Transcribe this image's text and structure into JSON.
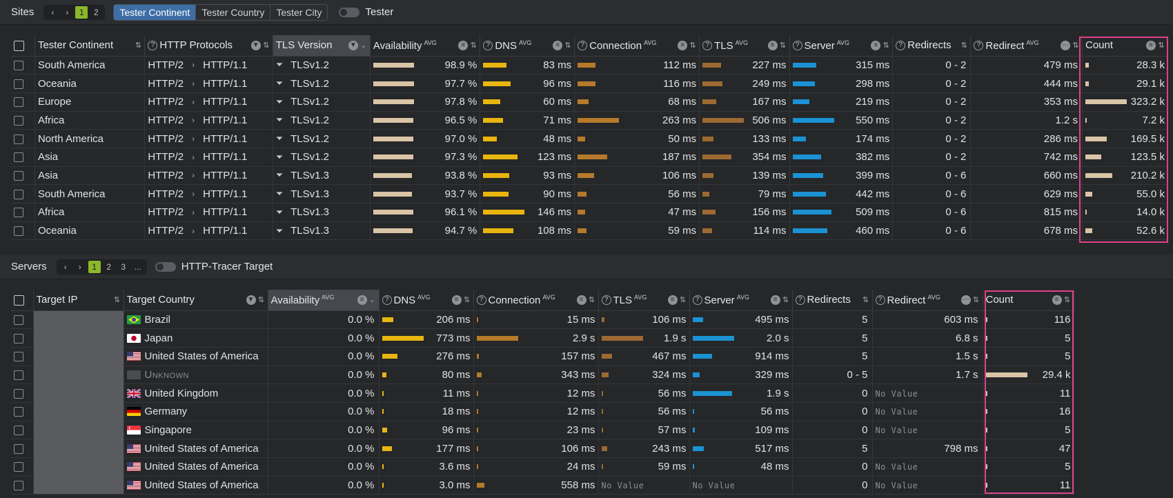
{
  "sites_panel": {
    "title": "Sites",
    "pages": [
      "1",
      "2"
    ],
    "active_page": "1",
    "segments": [
      "Tester Continent",
      "Tester Country",
      "Tester City"
    ],
    "toggle_label": "Tester",
    "columns": {
      "continent": "Tester Continent",
      "protocols": "HTTP Protocols",
      "tls_version": "TLS Version",
      "availability": "Availability",
      "dns": "DNS",
      "connection": "Connection",
      "tls": "TLS",
      "server": "Server",
      "redirects": "Redirects",
      "redirect": "Redirect",
      "count": "Count",
      "avg": "AVG"
    },
    "rows": [
      {
        "continent": "South America",
        "proto_a": "HTTP/2",
        "proto_b": "HTTP/1.1",
        "tls_version": "TLSv1.2",
        "availability": "98.9 %",
        "avail_pct": 0.989,
        "dns": "83 ms",
        "dns_frac": 0.57,
        "connection": "112 ms",
        "conn_frac": 0.43,
        "tls": "227 ms",
        "tls_frac": 0.45,
        "server": "315 ms",
        "server_frac": 0.57,
        "redirects": "0 - 2",
        "redirect": "479 ms",
        "count": "28.3 k",
        "count_frac": 0.09
      },
      {
        "continent": "Oceania",
        "proto_a": "HTTP/2",
        "proto_b": "HTTP/1.1",
        "tls_version": "TLSv1.2",
        "availability": "97.7 %",
        "avail_pct": 0.977,
        "dns": "96 ms",
        "dns_frac": 0.66,
        "connection": "116 ms",
        "conn_frac": 0.44,
        "tls": "249 ms",
        "tls_frac": 0.49,
        "server": "298 ms",
        "server_frac": 0.54,
        "redirects": "0 - 2",
        "redirect": "444 ms",
        "count": "29.1 k",
        "count_frac": 0.09
      },
      {
        "continent": "Europe",
        "proto_a": "HTTP/2",
        "proto_b": "HTTP/1.1",
        "tls_version": "TLSv1.2",
        "availability": "97.8 %",
        "avail_pct": 0.978,
        "dns": "60 ms",
        "dns_frac": 0.41,
        "connection": "68 ms",
        "conn_frac": 0.26,
        "tls": "167 ms",
        "tls_frac": 0.33,
        "server": "219 ms",
        "server_frac": 0.4,
        "redirects": "0 - 2",
        "redirect": "353 ms",
        "count": "323.2 k",
        "count_frac": 1.0
      },
      {
        "continent": "Africa",
        "proto_a": "HTTP/2",
        "proto_b": "HTTP/1.1",
        "tls_version": "TLSv1.2",
        "availability": "96.5 %",
        "avail_pct": 0.965,
        "dns": "71 ms",
        "dns_frac": 0.49,
        "connection": "263 ms",
        "conn_frac": 1.0,
        "tls": "506 ms",
        "tls_frac": 1.0,
        "server": "550 ms",
        "server_frac": 1.0,
        "redirects": "0 - 2",
        "redirect": "1.2 s",
        "count": "7.2 k",
        "count_frac": 0.02
      },
      {
        "continent": "North America",
        "proto_a": "HTTP/2",
        "proto_b": "HTTP/1.1",
        "tls_version": "TLSv1.2",
        "availability": "97.0 %",
        "avail_pct": 0.97,
        "dns": "48 ms",
        "dns_frac": 0.33,
        "connection": "50 ms",
        "conn_frac": 0.19,
        "tls": "133 ms",
        "tls_frac": 0.26,
        "server": "174 ms",
        "server_frac": 0.32,
        "redirects": "0 - 2",
        "redirect": "286 ms",
        "count": "169.5 k",
        "count_frac": 0.52
      },
      {
        "continent": "Asia",
        "proto_a": "HTTP/2",
        "proto_b": "HTTP/1.1",
        "tls_version": "TLSv1.2",
        "availability": "97.3 %",
        "avail_pct": 0.973,
        "dns": "123 ms",
        "dns_frac": 0.84,
        "connection": "187 ms",
        "conn_frac": 0.71,
        "tls": "354 ms",
        "tls_frac": 0.7,
        "server": "382 ms",
        "server_frac": 0.69,
        "redirects": "0 - 2",
        "redirect": "742 ms",
        "count": "123.5 k",
        "count_frac": 0.38
      },
      {
        "continent": "Asia",
        "proto_a": "HTTP/2",
        "proto_b": "HTTP/1.1",
        "tls_version": "TLSv1.3",
        "availability": "93.8 %",
        "avail_pct": 0.938,
        "dns": "93 ms",
        "dns_frac": 0.64,
        "connection": "106 ms",
        "conn_frac": 0.4,
        "tls": "139 ms",
        "tls_frac": 0.27,
        "server": "399 ms",
        "server_frac": 0.73,
        "redirects": "0 - 6",
        "redirect": "660 ms",
        "count": "210.2 k",
        "count_frac": 0.65
      },
      {
        "continent": "South America",
        "proto_a": "HTTP/2",
        "proto_b": "HTTP/1.1",
        "tls_version": "TLSv1.3",
        "availability": "93.7 %",
        "avail_pct": 0.937,
        "dns": "90 ms",
        "dns_frac": 0.62,
        "connection": "56 ms",
        "conn_frac": 0.21,
        "tls": "79 ms",
        "tls_frac": 0.16,
        "server": "442 ms",
        "server_frac": 0.8,
        "redirects": "0 - 6",
        "redirect": "629 ms",
        "count": "55.0 k",
        "count_frac": 0.17
      },
      {
        "continent": "Africa",
        "proto_a": "HTTP/2",
        "proto_b": "HTTP/1.1",
        "tls_version": "TLSv1.3",
        "availability": "96.1 %",
        "avail_pct": 0.961,
        "dns": "146 ms",
        "dns_frac": 1.0,
        "connection": "47 ms",
        "conn_frac": 0.18,
        "tls": "156 ms",
        "tls_frac": 0.31,
        "server": "509 ms",
        "server_frac": 0.93,
        "redirects": "0 - 6",
        "redirect": "815 ms",
        "count": "14.0 k",
        "count_frac": 0.04
      },
      {
        "continent": "Oceania",
        "proto_a": "HTTP/2",
        "proto_b": "HTTP/1.1",
        "tls_version": "TLSv1.3",
        "availability": "94.7 %",
        "avail_pct": 0.947,
        "dns": "108 ms",
        "dns_frac": 0.74,
        "connection": "59 ms",
        "conn_frac": 0.22,
        "tls": "114 ms",
        "tls_frac": 0.23,
        "server": "460 ms",
        "server_frac": 0.84,
        "redirects": "0 - 6",
        "redirect": "678 ms",
        "count": "52.6 k",
        "count_frac": 0.16
      }
    ]
  },
  "servers_panel": {
    "title": "Servers",
    "pages": [
      "1",
      "2",
      "3",
      "..."
    ],
    "active_page": "1",
    "toggle_label": "HTTP-Tracer Target",
    "columns": {
      "target_ip": "Target IP",
      "target_country": "Target Country",
      "availability": "Availability",
      "dns": "DNS",
      "connection": "Connection",
      "tls": "TLS",
      "server": "Server",
      "redirects": "Redirects",
      "redirect": "Redirect",
      "count": "Count",
      "avg": "AVG"
    },
    "no_value": "No Value",
    "rows": [
      {
        "flag": "br",
        "country": "Brazil",
        "availability": "0.0 %",
        "dns": "206 ms",
        "dns_frac": 0.27,
        "connection": "15 ms",
        "conn_frac": 0.01,
        "tls": "106 ms",
        "tls_frac": 0.06,
        "server": "495 ms",
        "server_frac": 0.25,
        "redirects": "5",
        "redirect": "603 ms",
        "count": "116",
        "count_frac": 0.005
      },
      {
        "flag": "jp",
        "country": "Japan",
        "availability": "0.0 %",
        "dns": "773 ms",
        "dns_frac": 1.0,
        "connection": "2.9 s",
        "conn_frac": 1.0,
        "tls": "1.9 s",
        "tls_frac": 1.0,
        "server": "2.0 s",
        "server_frac": 1.0,
        "redirects": "5",
        "redirect": "6.8 s",
        "count": "5",
        "count_frac": 0.005
      },
      {
        "flag": "us",
        "country": "United States of America",
        "availability": "0.0 %",
        "dns": "276 ms",
        "dns_frac": 0.36,
        "connection": "157 ms",
        "conn_frac": 0.05,
        "tls": "467 ms",
        "tls_frac": 0.25,
        "server": "914 ms",
        "server_frac": 0.46,
        "redirects": "5",
        "redirect": "1.5 s",
        "count": "5",
        "count_frac": 0.005
      },
      {
        "flag": "unknown",
        "country": "Unknown",
        "availability": "0.0 %",
        "dns": "80 ms",
        "dns_frac": 0.1,
        "connection": "343 ms",
        "conn_frac": 0.12,
        "tls": "324 ms",
        "tls_frac": 0.17,
        "server": "329 ms",
        "server_frac": 0.16,
        "redirects": "0 - 5",
        "redirect": "1.7 s",
        "count": "29.4 k",
        "count_frac": 1.0
      },
      {
        "flag": "gb",
        "country": "United Kingdom",
        "availability": "0.0 %",
        "dns": "11 ms",
        "dns_frac": 0.014,
        "connection": "12 ms",
        "conn_frac": 0.004,
        "tls": "56 ms",
        "tls_frac": 0.03,
        "server": "1.9 s",
        "server_frac": 0.95,
        "redirects": "0",
        "redirect": "",
        "count": "11",
        "count_frac": 0.005
      },
      {
        "flag": "de",
        "country": "Germany",
        "availability": "0.0 %",
        "dns": "18 ms",
        "dns_frac": 0.023,
        "connection": "12 ms",
        "conn_frac": 0.004,
        "tls": "56 ms",
        "tls_frac": 0.03,
        "server": "56 ms",
        "server_frac": 0.028,
        "redirects": "0",
        "redirect": "",
        "count": "16",
        "count_frac": 0.005
      },
      {
        "flag": "sg",
        "country": "Singapore",
        "availability": "0.0 %",
        "dns": "96 ms",
        "dns_frac": 0.12,
        "connection": "23 ms",
        "conn_frac": 0.008,
        "tls": "57 ms",
        "tls_frac": 0.03,
        "server": "109 ms",
        "server_frac": 0.055,
        "redirects": "0",
        "redirect": "",
        "count": "5",
        "count_frac": 0.005
      },
      {
        "flag": "us",
        "country": "United States of America",
        "availability": "0.0 %",
        "dns": "177 ms",
        "dns_frac": 0.23,
        "connection": "106 ms",
        "conn_frac": 0.037,
        "tls": "243 ms",
        "tls_frac": 0.13,
        "server": "517 ms",
        "server_frac": 0.26,
        "redirects": "5",
        "redirect": "798 ms",
        "count": "47",
        "count_frac": 0.005
      },
      {
        "flag": "us",
        "country": "United States of America",
        "availability": "0.0 %",
        "dns": "3.6 ms",
        "dns_frac": 0.005,
        "connection": "24 ms",
        "conn_frac": 0.008,
        "tls": "59 ms",
        "tls_frac": 0.03,
        "server": "48 ms",
        "server_frac": 0.024,
        "redirects": "0",
        "redirect": "",
        "count": "5",
        "count_frac": 0.005
      },
      {
        "flag": "us",
        "country": "United States of America",
        "availability": "0.0 %",
        "dns": "3.0 ms",
        "dns_frac": 0.004,
        "connection": "558 ms",
        "conn_frac": 0.19,
        "tls": "",
        "tls_frac": 0,
        "server": "",
        "server_frac": 0,
        "redirects": "0",
        "redirect": "",
        "count": "11",
        "count_frac": 0.005
      }
    ]
  },
  "colors": {
    "accent": "#3d6ea5",
    "page_active": "#8bb82c",
    "highlight": "#e0418a",
    "bar_availability": "#d9c4a6",
    "bar_dns": "#e9b50f",
    "bar_connection": "#b57a2a",
    "bar_tls": "#9c6a32",
    "bar_server": "#1b92d3"
  }
}
